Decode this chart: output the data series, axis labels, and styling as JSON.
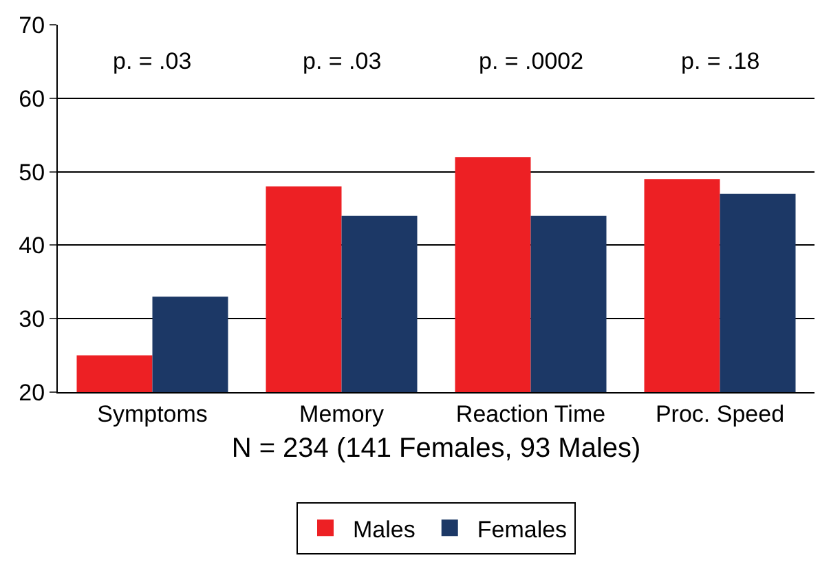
{
  "chart_data": {
    "type": "bar",
    "categories": [
      "Symptoms",
      "Memory",
      "Reaction Time",
      "Proc. Speed"
    ],
    "series": [
      {
        "name": "Males",
        "color": "#ed2024",
        "values": [
          25,
          48,
          52,
          49
        ]
      },
      {
        "name": "Females",
        "color": "#1c3866",
        "values": [
          33,
          44,
          44,
          47
        ]
      }
    ],
    "xlabel": "N = 234 (141 Females, 93 Males)",
    "ylim": [
      20,
      70
    ],
    "yticks": [
      20,
      30,
      40,
      50,
      60,
      70
    ],
    "grid": "y",
    "legend": "bottom",
    "annotations": [
      "p. = .03",
      "p. = .03",
      "p. = .0002",
      "p. = .18"
    ]
  }
}
